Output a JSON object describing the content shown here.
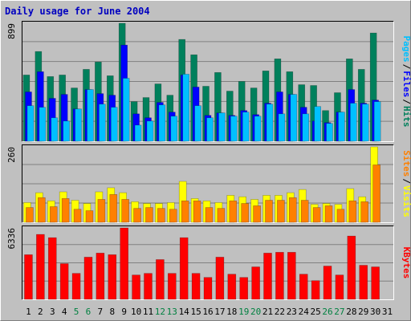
{
  "chart_data": [
    {
      "type": "bar",
      "title": "Daily usage for June 2004",
      "ylim": [
        0,
        899
      ],
      "yticks": [
        899
      ],
      "legend_separator": "/",
      "series": [
        {
          "name": "Hits",
          "color": "#00805c",
          "values": [
            505,
            684,
            493,
            505,
            406,
            548,
            604,
            499,
            899,
            302,
            333,
            437,
            351,
            776,
            659,
            419,
            524,
            382,
            456,
            406,
            536,
            628,
            530,
            431,
            425,
            234,
            370,
            628,
            548,
            825,
            null
          ]
        },
        {
          "name": "Files",
          "color": "#0000ff",
          "values": [
            376,
            530,
            327,
            357,
            246,
            394,
            363,
            351,
            733,
            209,
            179,
            296,
            222,
            505,
            413,
            197,
            216,
            197,
            234,
            203,
            290,
            376,
            357,
            259,
            154,
            142,
            222,
            394,
            290,
            314,
            null
          ]
        },
        {
          "name": "Pages",
          "color": "#00c0ff",
          "values": [
            271,
            259,
            179,
            154,
            246,
            394,
            283,
            259,
            480,
            123,
            154,
            277,
            191,
            511,
            271,
            179,
            216,
            191,
            222,
            191,
            283,
            209,
            357,
            209,
            265,
            136,
            222,
            290,
            283,
            302,
            null
          ]
        }
      ]
    },
    {
      "type": "bar",
      "ylim": [
        0,
        260
      ],
      "yticks": [
        260
      ],
      "legend_separator": "/",
      "series": [
        {
          "name": "Visits",
          "color": "#ffff00",
          "values": [
            68,
            102,
            74,
            105,
            76,
            65,
            105,
            119,
            102,
            71,
            65,
            65,
            68,
            141,
            82,
            74,
            68,
            93,
            88,
            79,
            93,
            93,
            102,
            113,
            62,
            65,
            62,
            116,
            88,
            260,
            null
          ]
        },
        {
          "name": "Sites",
          "color": "#ff8000",
          "values": [
            51,
            85,
            54,
            82,
            45,
            40,
            79,
            96,
            79,
            48,
            51,
            48,
            45,
            74,
            74,
            51,
            48,
            74,
            65,
            57,
            76,
            76,
            85,
            76,
            51,
            57,
            45,
            74,
            71,
            198,
            null
          ]
        }
      ]
    },
    {
      "type": "bar",
      "ylim": [
        0,
        6336
      ],
      "yticks": [
        6336
      ],
      "categories": [
        "1",
        "2",
        "3",
        "4",
        "5",
        "6",
        "7",
        "8",
        "9",
        "10",
        "11",
        "12",
        "13",
        "14",
        "15",
        "16",
        "17",
        "18",
        "19",
        "20",
        "21",
        "22",
        "23",
        "24",
        "25",
        "26",
        "27",
        "28",
        "29",
        "30",
        "31"
      ],
      "label_color": "#000000",
      "highlight_label_color": "#008040",
      "highlight_categories": [
        4,
        5,
        11,
        12,
        18,
        19,
        25,
        26
      ],
      "series": [
        {
          "name": "KBytes",
          "color": "#ff0000",
          "values": [
            3960,
            5760,
            5472,
            3168,
            2304,
            3744,
            4104,
            3960,
            6336,
            2160,
            2304,
            3528,
            2304,
            5472,
            2304,
            1944,
            3744,
            2232,
            1944,
            2880,
            4104,
            4176,
            4176,
            2232,
            1656,
            2952,
            2160,
            5616,
            3024,
            2880,
            null
          ]
        }
      ]
    }
  ]
}
